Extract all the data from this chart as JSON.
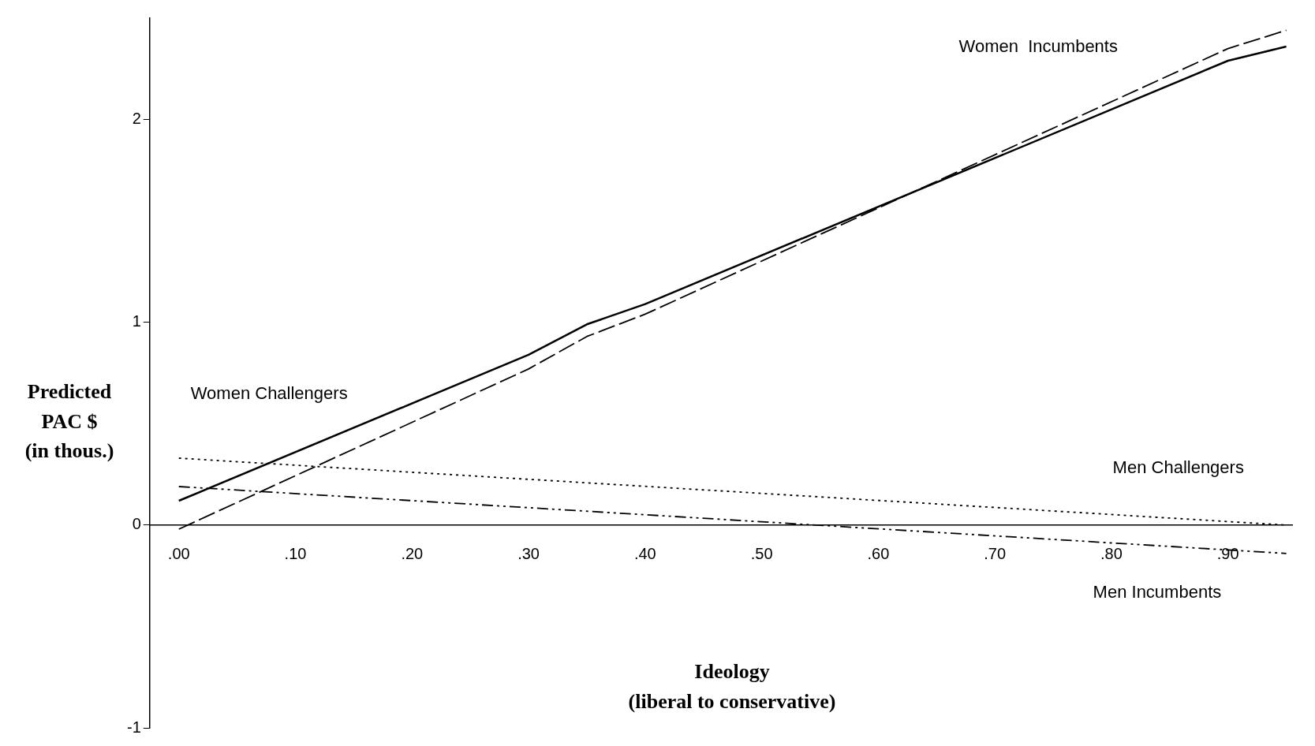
{
  "chart_data": {
    "type": "line",
    "xlabel": "Ideology\n(liberal to conservative)",
    "ylabel": "Predicted\nPAC $\n(in thous.)",
    "xlim": [
      -0.025,
      0.955
    ],
    "ylim": [
      -1,
      2.5
    ],
    "xticks": [
      {
        "value": 0,
        "label": ".00"
      },
      {
        "value": 0.1,
        "label": ".10"
      },
      {
        "value": 0.2,
        "label": ".20"
      },
      {
        "value": 0.3,
        "label": ".30"
      },
      {
        "value": 0.4,
        "label": ".40"
      },
      {
        "value": 0.5,
        "label": ".50"
      },
      {
        "value": 0.6,
        "label": ".60"
      },
      {
        "value": 0.7,
        "label": ".70"
      },
      {
        "value": 0.8,
        "label": ".80"
      },
      {
        "value": 0.9,
        "label": ".90"
      }
    ],
    "yticks": [
      -1,
      0,
      1,
      2
    ],
    "grid": false,
    "legend": false,
    "marker": "none",
    "series": [
      {
        "name": "Women Challengers",
        "color": "#000000",
        "line_style": "solid",
        "x": [
          0,
          0.3,
          0.35,
          0.4,
          0.9,
          0.95
        ],
        "values": [
          0.12,
          0.84,
          0.99,
          1.09,
          2.29,
          2.36
        ]
      },
      {
        "name": "Women  Incumbents",
        "color": "#000000",
        "line_style": "dashed",
        "x": [
          0,
          0.3,
          0.35,
          0.4,
          0.9,
          0.95
        ],
        "values": [
          -0.02,
          0.77,
          0.93,
          1.04,
          2.35,
          2.44
        ]
      },
      {
        "name": "Men Challengers",
        "color": "#000000",
        "line_style": "dotted",
        "x": [
          0,
          0.95
        ],
        "values": [
          0.33,
          0.0
        ]
      },
      {
        "name": "Men Incumbents",
        "color": "#000000",
        "line_style": "dashdot",
        "x": [
          0,
          0.95
        ],
        "values": [
          0.19,
          -0.14
        ]
      }
    ]
  }
}
